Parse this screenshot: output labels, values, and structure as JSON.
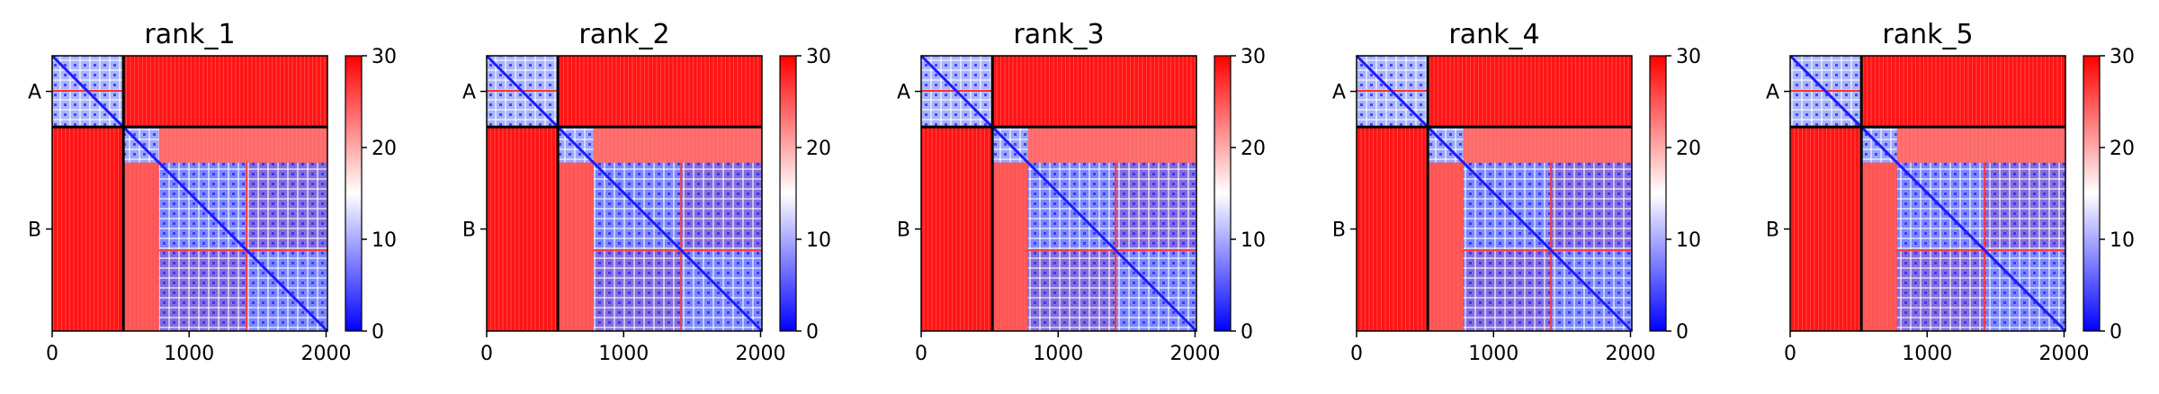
{
  "chart_data": {
    "type": "heatmap",
    "layout": "1x5 small multiples",
    "colormap": "bwr",
    "colors": {
      "low": "#0000ff",
      "mid": "#ffffff",
      "high": "#ff0000",
      "boundary": "#000000"
    },
    "matrix_size": 2010,
    "domain_boundary": 520,
    "chains": [
      {
        "label": "A",
        "start": 0,
        "end": 520
      },
      {
        "label": "B",
        "start": 520,
        "end": 2010
      }
    ],
    "xlim": [
      0,
      2010
    ],
    "xticks": [
      0,
      1000,
      2000
    ],
    "xtick_labels": [
      "0",
      "1000",
      "2000"
    ],
    "colorbar": {
      "vmin": 0,
      "vmax": 30,
      "ticks": [
        0,
        10,
        20,
        30
      ],
      "tick_labels": [
        "0",
        "10",
        "20",
        "30"
      ]
    },
    "panels": [
      {
        "title": "rank_1"
      },
      {
        "title": "rank_2"
      },
      {
        "title": "rank_3"
      },
      {
        "title": "rank_4"
      },
      {
        "title": "rank_5"
      }
    ]
  }
}
